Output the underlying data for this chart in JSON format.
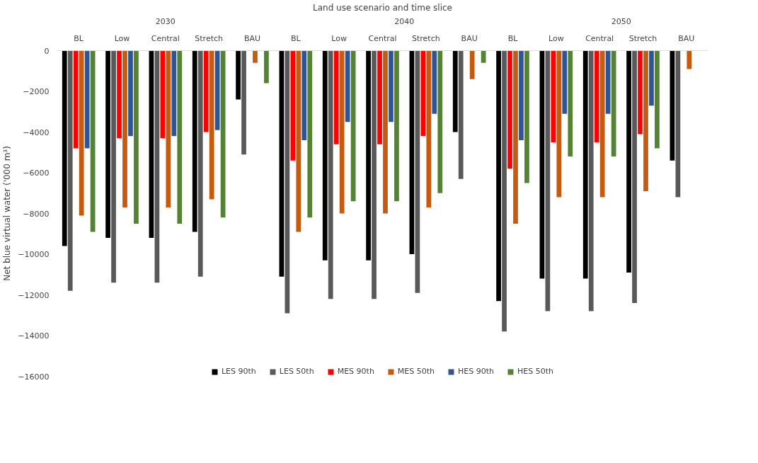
{
  "chart_data": {
    "type": "bar",
    "xlabel": "Land use scenario and time slice",
    "ylabel": "Net blue virtual water ('000 m³)",
    "categories": [
      "BL",
      "Low",
      "Central",
      "Stretch",
      "BAU",
      "BL",
      "Low",
      "Central",
      "Stretch",
      "BAU",
      "BL",
      "Low",
      "Central",
      "Stretch",
      "BAU"
    ],
    "annotations": [
      "2030",
      "2040",
      "2050"
    ],
    "series": [
      {
        "name": "LES 90th",
        "color": "#000000",
        "values": [
          -9600,
          -9200,
          -9200,
          -8900,
          -2400,
          -11100,
          -10300,
          -10300,
          -10000,
          -4000,
          -12300,
          -11200,
          -11200,
          -10900,
          -5400
        ]
      },
      {
        "name": "LES 50th",
        "color": "#595959",
        "values": [
          -11800,
          -11400,
          -11400,
          -11100,
          -5100,
          -12900,
          -12200,
          -12200,
          -11900,
          -6300,
          -13800,
          -12800,
          -12800,
          -12400,
          -7200
        ]
      },
      {
        "name": "MES 90th",
        "color": "#ff0000",
        "values": [
          -4800,
          -4300,
          -4300,
          -4000,
          null,
          -5400,
          -4600,
          -4600,
          -4200,
          null,
          -5800,
          -4500,
          -4500,
          -4100,
          null
        ]
      },
      {
        "name": "MES 50th",
        "color": "#c55a11",
        "values": [
          -8100,
          -7700,
          -7700,
          -7300,
          -600,
          -8900,
          -8000,
          -8000,
          -7700,
          -1400,
          -8500,
          -7200,
          -7200,
          -6900,
          -900
        ]
      },
      {
        "name": "HES 90th",
        "color": "#2f5597",
        "values": [
          -4800,
          -4200,
          -4200,
          -3900,
          null,
          -4400,
          -3500,
          -3500,
          -3100,
          null,
          -4400,
          -3100,
          -3100,
          -2700,
          null
        ]
      },
      {
        "name": "HES 50th",
        "color": "#548235",
        "values": [
          -8900,
          -8500,
          -8500,
          -8200,
          -1600,
          -8200,
          -7400,
          -7400,
          -7000,
          -600,
          -6500,
          -5200,
          -5200,
          -4800,
          null
        ]
      }
    ],
    "ylim": [
      -16000,
      0
    ],
    "yticks": [
      -16000,
      -14000,
      -12000,
      -10000,
      -8000,
      -6000,
      -4000,
      -2000,
      0
    ],
    "grid": false,
    "legend": "bottom"
  }
}
